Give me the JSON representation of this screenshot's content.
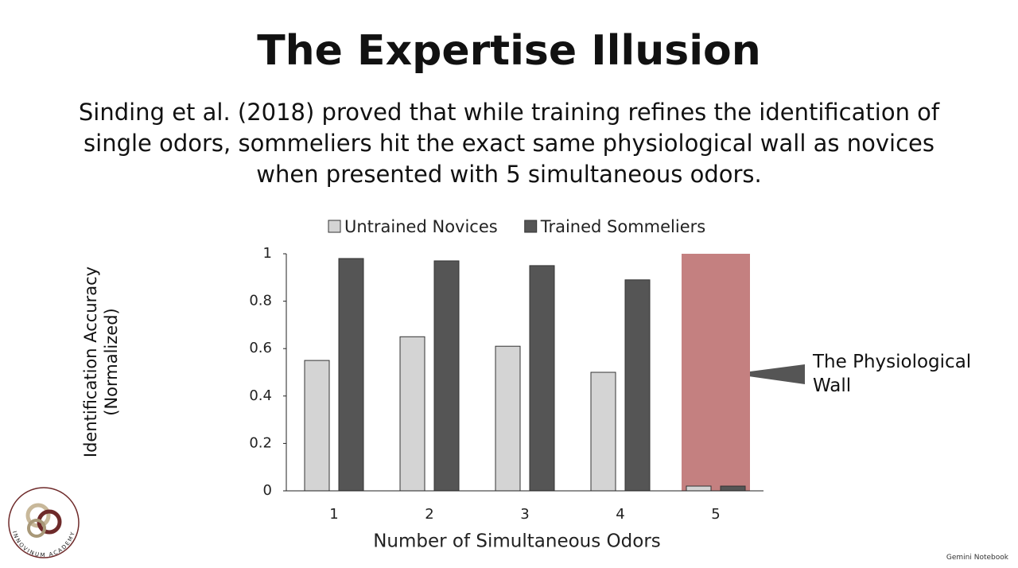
{
  "title": "The Expertise Illusion",
  "subtitle": "Sinding et al. (2018) proved that while training refines the identification of single odors, sommeliers hit the exact same physiological wall as novices when presented with 5 simultaneous odors.",
  "chart_data": {
    "type": "bar",
    "x_label": "Number of Simultaneous Odors",
    "y_label": "Identification Accuracy (Normalized)",
    "categories": [
      "1",
      "2",
      "3",
      "4",
      "5"
    ],
    "series": [
      {
        "name": "Untrained Novices",
        "color": "#d4d4d4",
        "values": [
          0.55,
          0.65,
          0.61,
          0.5,
          0.02
        ]
      },
      {
        "name": "Trained Sommeliers",
        "color": "#555555",
        "values": [
          0.98,
          0.97,
          0.95,
          0.89,
          0.02
        ]
      }
    ],
    "ylim": [
      0,
      1
    ],
    "yticks": [
      0,
      0.2,
      0.4,
      0.6,
      0.8,
      1
    ],
    "grid": false,
    "legend": "top",
    "annotation": {
      "text": "The Physiological Wall",
      "category": "5",
      "color": "#c48080"
    }
  },
  "logo": "INNOVINUM ACADEMY",
  "watermark": "Gemini Notebook"
}
